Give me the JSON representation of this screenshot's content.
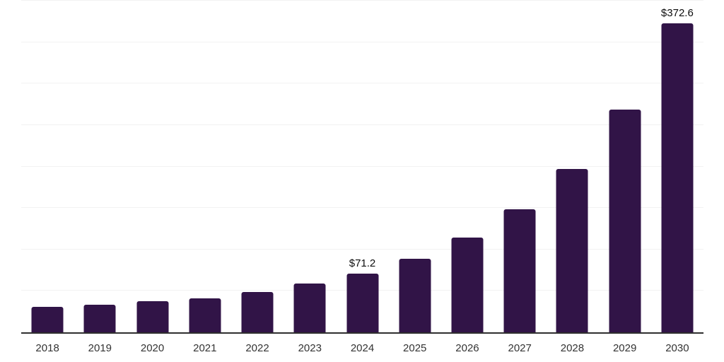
{
  "chart_data": {
    "type": "bar",
    "title": "",
    "xlabel": "",
    "ylabel": "",
    "categories": [
      "2018",
      "2019",
      "2020",
      "2021",
      "2022",
      "2023",
      "2024",
      "2025",
      "2026",
      "2027",
      "2028",
      "2029",
      "2030"
    ],
    "values": [
      30.4,
      33.0,
      37.2,
      41.1,
      48.3,
      58.8,
      71.2,
      88.8,
      114.2,
      148.2,
      197.4,
      268.3,
      372.6
    ],
    "annotations": [
      {
        "category": "2024",
        "label": "$71.2"
      },
      {
        "category": "2030",
        "label": "$372.6"
      }
    ],
    "ylim": [
      0,
      400
    ],
    "gridline_step": 50,
    "grid": "horizontal",
    "legend_position": "none",
    "y_axis_labels_visible": false,
    "bar_color": "#311447",
    "axis_line_color": "#2f2f2f",
    "gridline_color": "#f2f2f2",
    "tick_label_color": "#333333",
    "annotation_color": "#0d0d0d"
  }
}
